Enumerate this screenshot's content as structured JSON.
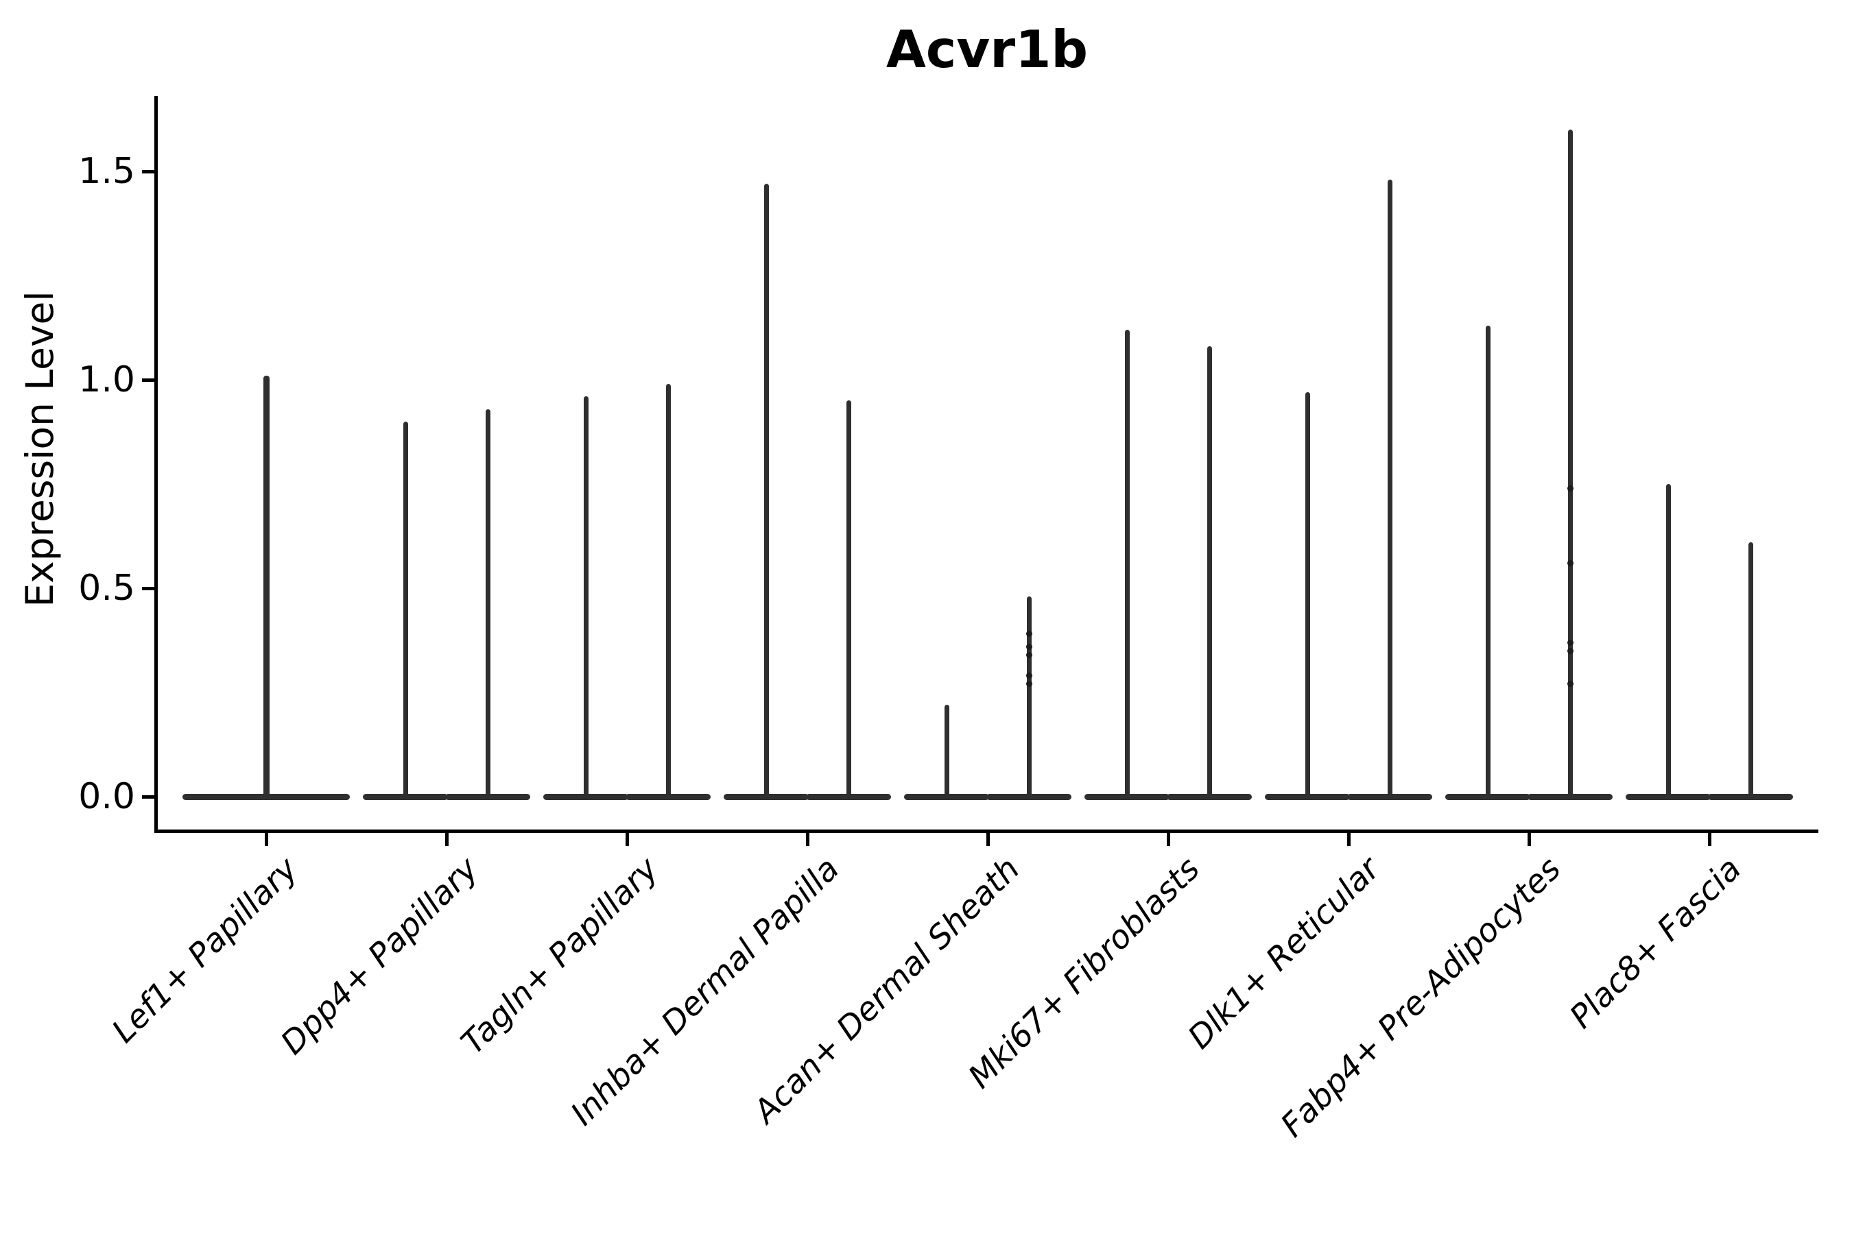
{
  "colors": {
    "background": "#ffffff",
    "axis_ink": "#000000",
    "violin_ink": "#2f2f2f"
  },
  "chart_data": {
    "type": "violin",
    "title": "Acvr1b",
    "ylabel": "Expression Level",
    "xlabel": "",
    "ylim": [
      0,
      1.68
    ],
    "yticks": [
      {
        "label": "0.0",
        "value": 0.0
      },
      {
        "label": "0.5",
        "value": 0.5
      },
      {
        "label": "1.0",
        "value": 1.0
      },
      {
        "label": "1.5",
        "value": 1.5
      }
    ],
    "grid": false,
    "legend": false,
    "description": "Violin plot of Acvr1b expression per fibroblast cell type; each violin collapses to a wide flat base at 0 with a thin spike up to the maximum expressed value. All categories except the first contain two side-by-side violins (two groups).",
    "categories": [
      {
        "label": "Lef1+ Papillary",
        "violins": [
          {
            "position": "center",
            "max_expression": 1.01,
            "bulk_at_zero": true
          }
        ]
      },
      {
        "label": "Dpp4+ Papillary",
        "violins": [
          {
            "position": "left",
            "max_expression": 0.9,
            "bulk_at_zero": true
          },
          {
            "position": "right",
            "max_expression": 0.93,
            "bulk_at_zero": true
          }
        ]
      },
      {
        "label": "Tagln+ Papillary",
        "violins": [
          {
            "position": "left",
            "max_expression": 0.96,
            "bulk_at_zero": true
          },
          {
            "position": "right",
            "max_expression": 0.99,
            "bulk_at_zero": true
          }
        ]
      },
      {
        "label": "Inhba+ Dermal Papilla",
        "violins": [
          {
            "position": "left",
            "max_expression": 1.47,
            "bulk_at_zero": true
          },
          {
            "position": "right",
            "max_expression": 0.95,
            "bulk_at_zero": true
          }
        ]
      },
      {
        "label": "Acan+ Dermal Sheath",
        "violins": [
          {
            "position": "left",
            "max_expression": 0.22,
            "bulk_at_zero": true
          },
          {
            "position": "right",
            "max_expression": 0.48,
            "bulk_at_zero": true,
            "visible_points": [
              0.39,
              0.36,
              0.34,
              0.29,
              0.27
            ]
          }
        ]
      },
      {
        "label": "Mki67+ Fibroblasts",
        "violins": [
          {
            "position": "left",
            "max_expression": 1.12,
            "bulk_at_zero": true
          },
          {
            "position": "right",
            "max_expression": 1.08,
            "bulk_at_zero": true
          }
        ]
      },
      {
        "label": "Dlk1+ Reticular",
        "violins": [
          {
            "position": "left",
            "max_expression": 0.97,
            "bulk_at_zero": true
          },
          {
            "position": "right",
            "max_expression": 1.48,
            "bulk_at_zero": true
          }
        ]
      },
      {
        "label": "Fabp4+ Pre-Adipocytes",
        "violins": [
          {
            "position": "left",
            "max_expression": 1.13,
            "bulk_at_zero": true
          },
          {
            "position": "right",
            "max_expression": 1.6,
            "bulk_at_zero": true,
            "visible_points": [
              0.74,
              0.56,
              0.37,
              0.35,
              0.27
            ]
          }
        ]
      },
      {
        "label": "Plac8+ Fascia",
        "violins": [
          {
            "position": "left",
            "max_expression": 0.75,
            "bulk_at_zero": true
          },
          {
            "position": "right",
            "max_expression": 0.61,
            "bulk_at_zero": true
          }
        ]
      }
    ]
  }
}
